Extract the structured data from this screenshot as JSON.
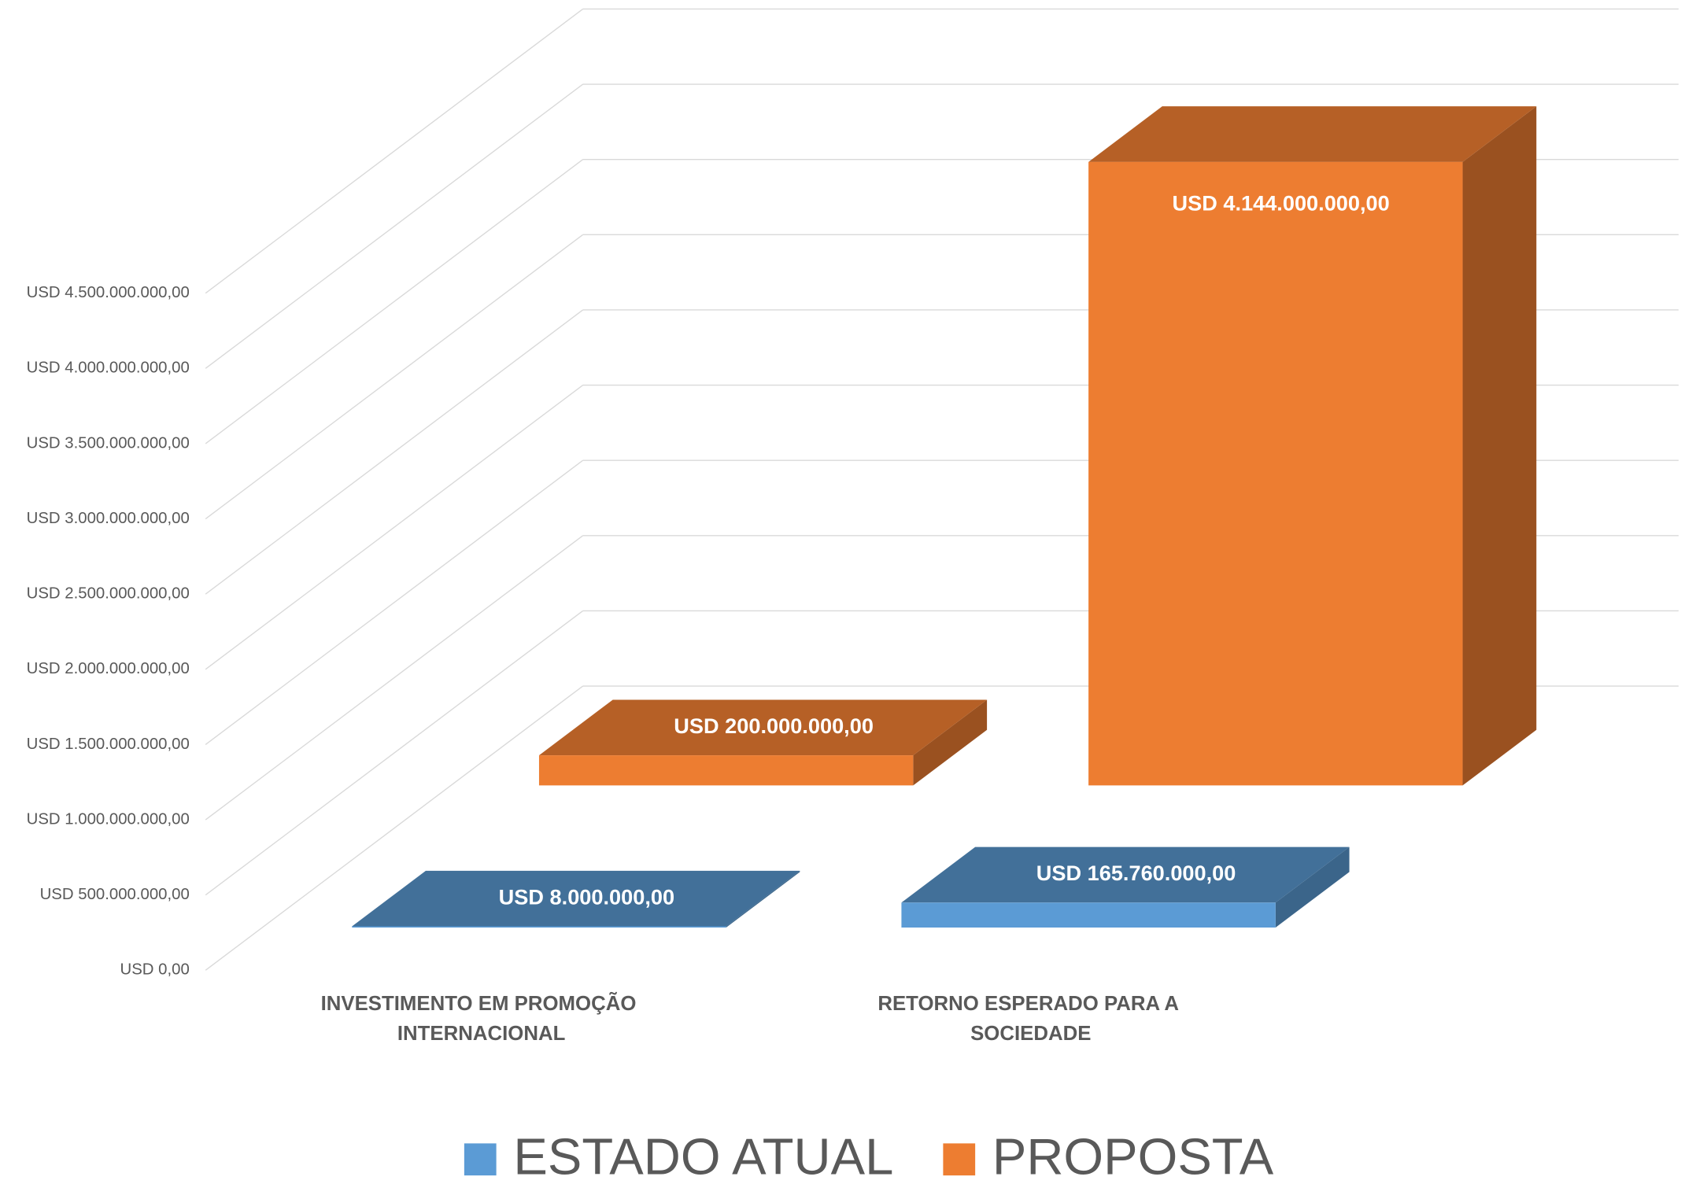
{
  "chart_data": {
    "type": "bar3d",
    "categories": [
      "INVESTIMENTO EM PROMOÇÃO INTERNACIONAL",
      "RETORNO ESPERADO PARA A SOCIEDADE"
    ],
    "series": [
      {
        "name": "ESTADO ATUAL",
        "color": "#5b9bd5",
        "values": [
          8000000,
          165760000
        ],
        "value_labels": [
          "USD 8.000.000,00",
          "USD 165.760.000,00"
        ]
      },
      {
        "name": "PROPOSTA",
        "color": "#ed7d31",
        "values": [
          200000000,
          4144000000
        ],
        "value_labels": [
          "USD 200.000.000,00",
          "USD 4.144.000.000,00"
        ]
      }
    ],
    "ylim": [
      0,
      4500000000
    ],
    "yticks": [
      {
        "value": 0,
        "label": "USD 0,00"
      },
      {
        "value": 500000000,
        "label": "USD 500.000.000,00"
      },
      {
        "value": 1000000000,
        "label": "USD 1.000.000.000,00"
      },
      {
        "value": 1500000000,
        "label": "USD 1.500.000.000,00"
      },
      {
        "value": 2000000000,
        "label": "USD 2.000.000.000,00"
      },
      {
        "value": 2500000000,
        "label": "USD 2.500.000.000,00"
      },
      {
        "value": 3000000000,
        "label": "USD 3.000.000.000,00"
      },
      {
        "value": 3500000000,
        "label": "USD 3.500.000.000,00"
      },
      {
        "value": 4000000000,
        "label": "USD 4.000.000.000,00"
      },
      {
        "value": 4500000000,
        "label": "USD 4.500.000.000,00"
      }
    ],
    "grid": true,
    "legend": "bottom"
  }
}
